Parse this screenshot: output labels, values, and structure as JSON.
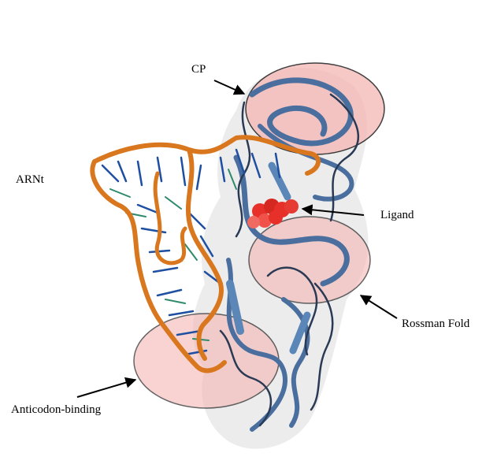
{
  "figure": {
    "labels": {
      "cp": "CP",
      "arnt": "ARNt",
      "ligand": "Ligand",
      "rossman_fold": "Rossman Fold",
      "anticodon_binding": "Anticodon-binding"
    },
    "colors": {
      "domain_highlight": "#f4b6b3",
      "protein_ribbon": "#4a6f9f",
      "protein_dark": "#2a3a55",
      "rna_backbone": "#d9771f",
      "rna_bases": "#1f4fa0",
      "ligand": "#e8302a",
      "surface": "#e6e6e6"
    }
  }
}
